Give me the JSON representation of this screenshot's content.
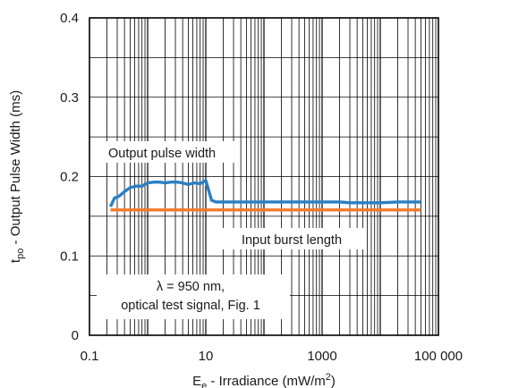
{
  "chart_data": {
    "type": "line",
    "xscale": "log",
    "xlim": [
      0.1,
      100000
    ],
    "ylim": [
      0,
      0.4
    ],
    "grid": true,
    "xticks": [
      {
        "v": 0.1,
        "label": "0.1"
      },
      {
        "v": 10,
        "label": "10"
      },
      {
        "v": 1000,
        "label": "1000"
      },
      {
        "v": 100000,
        "label": "100 000"
      }
    ],
    "yticks": [
      {
        "v": 0,
        "label": "0"
      },
      {
        "v": 0.1,
        "label": "0.1"
      },
      {
        "v": 0.2,
        "label": "0.2"
      },
      {
        "v": 0.3,
        "label": "0.3"
      },
      {
        "v": 0.4,
        "label": "0.4"
      }
    ],
    "xlabel": {
      "main": "E",
      "sub": "e",
      "rest": " - Irradiance (mW/m",
      "sup": "2",
      "end": ")"
    },
    "ylabel": {
      "main": "t",
      "sub": "po",
      "rest": " - Output Pulse Width (ms)"
    },
    "series": [
      {
        "name": "Output pulse width",
        "color": "#2a7fc4",
        "x": [
          0.23,
          0.27,
          0.32,
          0.4,
          0.5,
          0.63,
          0.8,
          1.0,
          1.3,
          1.6,
          2.0,
          2.5,
          3.2,
          4.0,
          5.0,
          6.3,
          8.0,
          10.0,
          12.6,
          15.0,
          20,
          30,
          50,
          100,
          300,
          1000,
          2000,
          3000,
          5000,
          10000,
          20000,
          50000
        ],
        "y": [
          0.162,
          0.173,
          0.175,
          0.181,
          0.186,
          0.188,
          0.188,
          0.192,
          0.193,
          0.193,
          0.192,
          0.193,
          0.193,
          0.192,
          0.19,
          0.192,
          0.191,
          0.195,
          0.17,
          0.168,
          0.168,
          0.168,
          0.168,
          0.168,
          0.168,
          0.168,
          0.168,
          0.167,
          0.167,
          0.167,
          0.168,
          0.168
        ]
      },
      {
        "name": "Input burst length",
        "color": "#f07a2a",
        "x": [
          0.23,
          50000
        ],
        "y": [
          0.158,
          0.158
        ]
      }
    ],
    "annotations": [
      {
        "id": "output",
        "text": "Output pulse width"
      },
      {
        "id": "input",
        "text": "Input burst length"
      },
      {
        "id": "cond1",
        "text": "λ = 950 nm,"
      },
      {
        "id": "cond2",
        "text": "optical test signal, Fig. 1"
      }
    ]
  }
}
